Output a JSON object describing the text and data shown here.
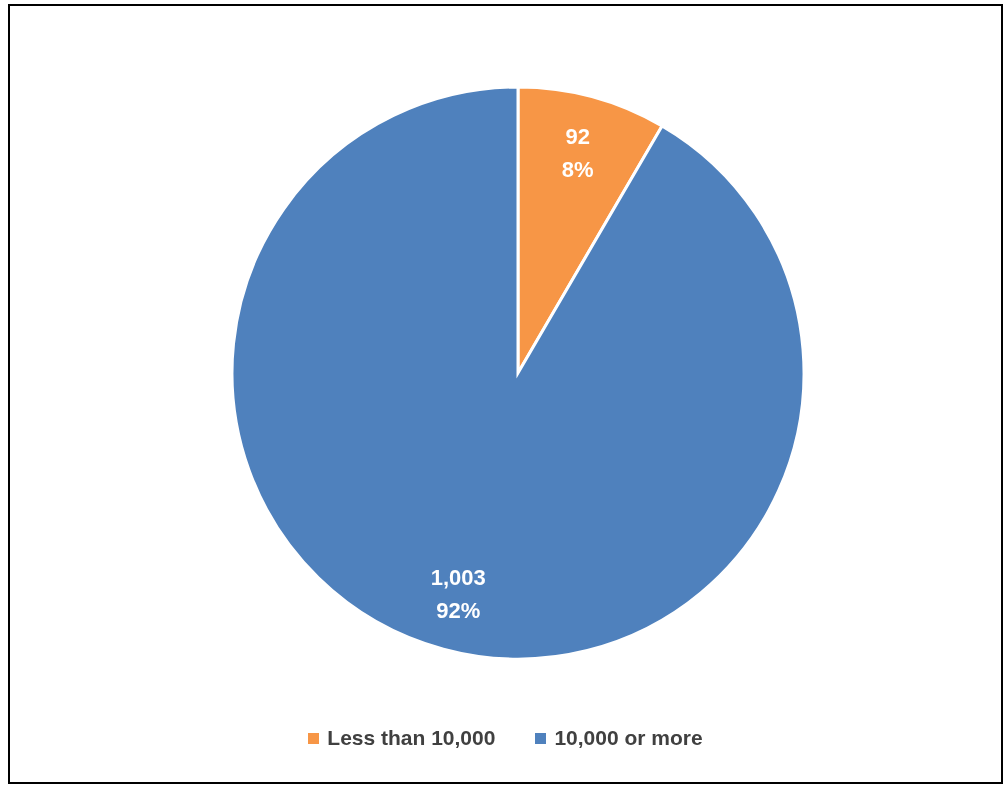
{
  "chart_data": {
    "type": "pie",
    "categories": [
      "Less than 10,000",
      "10,000 or more"
    ],
    "values": [
      92,
      1003
    ],
    "colors": [
      "#f79646",
      "#4f81bd"
    ],
    "value_labels": [
      "92\n8%",
      "1,003\n92%"
    ],
    "legend": "bottom"
  }
}
